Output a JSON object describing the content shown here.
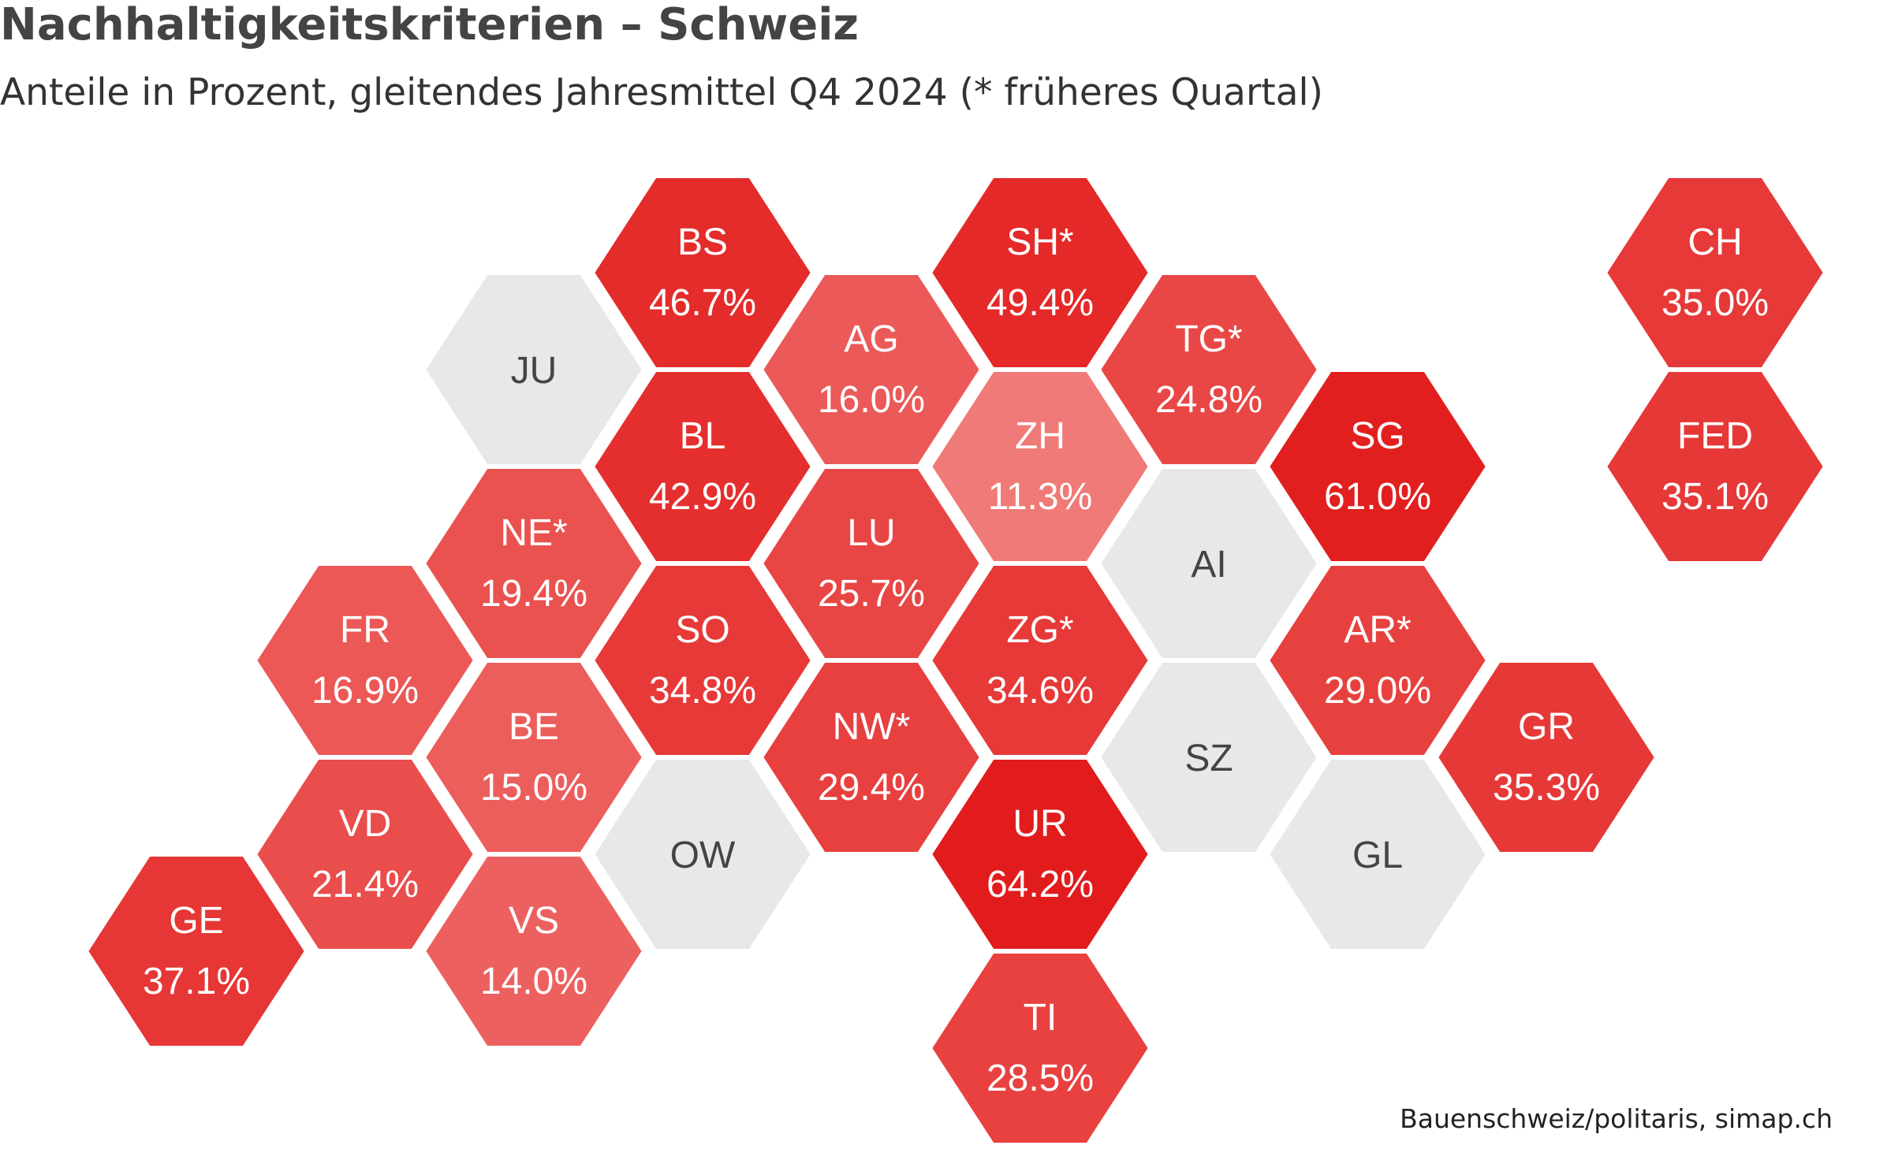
{
  "header": {
    "title": "Nachhaltigkeitskriterien – Schweiz",
    "subtitle": "Anteile in Prozent, gleitendes Jahresmittel Q4 2024 (* früheres Quartal)"
  },
  "source": "Bauenschweiz/politaris, simap.ch",
  "colors": {
    "nodata": "#e8e8e8",
    "scale_low": "#f07a77",
    "scale_high": "#e21c1c",
    "text_on_red": "#ffffff",
    "text_on_grey": "#444444"
  },
  "chart_data": {
    "type": "hex-tile-map",
    "unit": "%",
    "tiles": [
      {
        "code": "BS",
        "label": "46.7%",
        "value": 46.7,
        "col": 3,
        "row": 0
      },
      {
        "code": "SH*",
        "label": "49.4%",
        "value": 49.4,
        "col": 5,
        "row": 0
      },
      {
        "code": "CH",
        "label": "35.0%",
        "value": 35.0,
        "col": 9,
        "row": 0
      },
      {
        "code": "JU",
        "label": "",
        "value": null,
        "col": 2,
        "row": 1
      },
      {
        "code": "AG",
        "label": "16.0%",
        "value": 16.0,
        "col": 4,
        "row": 1
      },
      {
        "code": "TG*",
        "label": "24.8%",
        "value": 24.8,
        "col": 6,
        "row": 1
      },
      {
        "code": "BL",
        "label": "42.9%",
        "value": 42.9,
        "col": 3,
        "row": 2
      },
      {
        "code": "ZH",
        "label": "11.3%",
        "value": 11.3,
        "col": 5,
        "row": 2
      },
      {
        "code": "SG",
        "label": "61.0%",
        "value": 61.0,
        "col": 7,
        "row": 2
      },
      {
        "code": "FED",
        "label": "35.1%",
        "value": 35.1,
        "col": 9,
        "row": 2
      },
      {
        "code": "NE*",
        "label": "19.4%",
        "value": 19.4,
        "col": 2,
        "row": 3
      },
      {
        "code": "LU",
        "label": "25.7%",
        "value": 25.7,
        "col": 4,
        "row": 3
      },
      {
        "code": "AI",
        "label": "",
        "value": null,
        "col": 6,
        "row": 3
      },
      {
        "code": "FR",
        "label": "16.9%",
        "value": 16.9,
        "col": 1,
        "row": 4
      },
      {
        "code": "SO",
        "label": "34.8%",
        "value": 34.8,
        "col": 3,
        "row": 4
      },
      {
        "code": "ZG*",
        "label": "34.6%",
        "value": 34.6,
        "col": 5,
        "row": 4
      },
      {
        "code": "AR*",
        "label": "29.0%",
        "value": 29.0,
        "col": 7,
        "row": 4
      },
      {
        "code": "BE",
        "label": "15.0%",
        "value": 15.0,
        "col": 2,
        "row": 5
      },
      {
        "code": "NW*",
        "label": "29.4%",
        "value": 29.4,
        "col": 4,
        "row": 5
      },
      {
        "code": "SZ",
        "label": "",
        "value": null,
        "col": 6,
        "row": 5
      },
      {
        "code": "GR",
        "label": "35.3%",
        "value": 35.3,
        "col": 8,
        "row": 5
      },
      {
        "code": "VD",
        "label": "21.4%",
        "value": 21.4,
        "col": 1,
        "row": 6
      },
      {
        "code": "OW",
        "label": "",
        "value": null,
        "col": 3,
        "row": 6
      },
      {
        "code": "UR",
        "label": "64.2%",
        "value": 64.2,
        "col": 5,
        "row": 6
      },
      {
        "code": "GL",
        "label": "",
        "value": null,
        "col": 7,
        "row": 6
      },
      {
        "code": "GE",
        "label": "37.1%",
        "value": 37.1,
        "col": 0,
        "row": 7
      },
      {
        "code": "VS",
        "label": "14.0%",
        "value": 14.0,
        "col": 2,
        "row": 7
      },
      {
        "code": "TI",
        "label": "28.5%",
        "value": 28.5,
        "col": 5,
        "row": 8
      }
    ]
  }
}
